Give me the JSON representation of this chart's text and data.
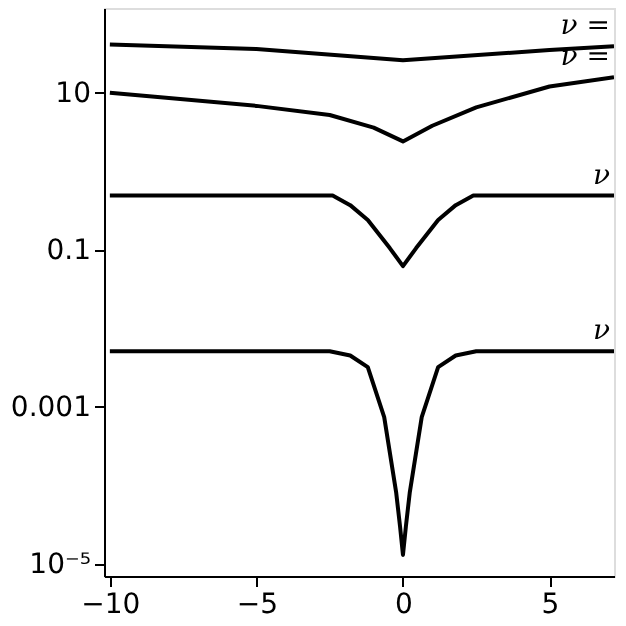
{
  "chart_data": {
    "type": "line",
    "log": "y",
    "marker": "none",
    "line_style": "solid",
    "xlim": [
      -10.2,
      7.2
    ],
    "xticks": [
      -10,
      -5,
      0,
      5
    ],
    "ylim": [
      7e-06,
      120
    ],
    "yticks": [
      10,
      0.1,
      0.001,
      {
        "value": 1e-05,
        "label": "10⁻⁵"
      }
    ],
    "series": [
      {
        "name": "ν =",
        "color": "#000000",
        "x": [
          -10,
          -5,
          0,
          5,
          7.2
        ],
        "values": [
          41,
          36,
          26,
          35,
          39
        ]
      },
      {
        "name": "ν =",
        "color": "#000000",
        "x": [
          -10,
          -5,
          -2.5,
          -1,
          0,
          1,
          2.5,
          5,
          7.2
        ],
        "values": [
          10,
          6.8,
          5.2,
          3.6,
          2.4,
          3.8,
          6.5,
          12,
          15.8
        ]
      },
      {
        "name": "ν",
        "color": "#000000",
        "x": [
          -10,
          -2.4,
          -1.8,
          -1.2,
          -0.45,
          0,
          0.45,
          1.2,
          1.8,
          2.4,
          7.2
        ],
        "values": [
          0.49,
          0.49,
          0.37,
          0.24,
          0.105,
          0.062,
          0.105,
          0.24,
          0.37,
          0.49,
          0.49
        ]
      },
      {
        "name": "ν",
        "color": "#000000",
        "x": [
          -10,
          -2.5,
          -1.8,
          -1.2,
          -0.64,
          -0.23,
          -0.1,
          0,
          0.1,
          0.23,
          0.64,
          1.2,
          1.8,
          2.5,
          7.2
        ],
        "values": [
          0.0051,
          0.0051,
          0.0045,
          0.0032,
          0.00074,
          8e-05,
          3e-05,
          1.3e-05,
          3e-05,
          8e-05,
          0.00074,
          0.0032,
          0.0045,
          0.0051,
          0.0051
        ]
      }
    ]
  }
}
